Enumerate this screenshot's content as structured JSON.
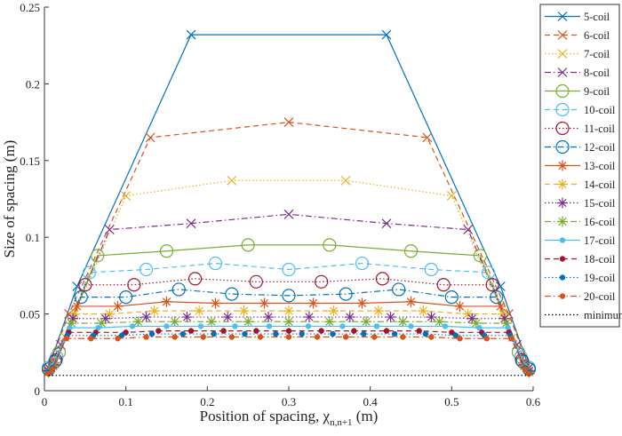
{
  "chart_data": {
    "type": "line",
    "xlabel": "Position of spacing, χ",
    "xlabel_sub": "n,n+1",
    "xlabel_unit": " (m)",
    "ylabel": "Size of spacing (m)",
    "xlim": [
      0,
      0.6
    ],
    "xticks": [
      0,
      0.1,
      0.2,
      0.3,
      0.4,
      0.5,
      0.6
    ],
    "ylim": [
      0,
      0.25
    ],
    "yticks": [
      0,
      0.05,
      0.1,
      0.15,
      0.2,
      0.25
    ],
    "legend": "outside-right",
    "series": [
      {
        "name": "5-coil",
        "color": "#0072BD",
        "dash": "solid",
        "marker": "x",
        "x": [
          0.005,
          0.04,
          0.18,
          0.42,
          0.56,
          0.595
        ],
        "values": [
          0.015,
          0.068,
          0.232,
          0.232,
          0.068,
          0.015
        ]
      },
      {
        "name": "6-coil",
        "color": "#D95319",
        "dash": "dashed",
        "marker": "x",
        "x": [
          0.005,
          0.03,
          0.13,
          0.3,
          0.47,
          0.57,
          0.595
        ],
        "values": [
          0.015,
          0.05,
          0.165,
          0.175,
          0.165,
          0.05,
          0.015
        ]
      },
      {
        "name": "7-coil",
        "color": "#EDB120",
        "dash": "dotted",
        "marker": "x",
        "x": [
          0.005,
          0.025,
          0.1,
          0.23,
          0.37,
          0.5,
          0.575,
          0.595
        ],
        "values": [
          0.015,
          0.035,
          0.127,
          0.137,
          0.137,
          0.127,
          0.035,
          0.015
        ]
      },
      {
        "name": "8-coil",
        "color": "#7E2F8E",
        "dash": "dashdot",
        "marker": "x",
        "x": [
          0.005,
          0.02,
          0.08,
          0.18,
          0.3,
          0.42,
          0.52,
          0.58,
          0.595
        ],
        "values": [
          0.015,
          0.03,
          0.105,
          0.109,
          0.115,
          0.109,
          0.105,
          0.03,
          0.015
        ]
      },
      {
        "name": "9-coil",
        "color": "#77AC30",
        "dash": "solid",
        "marker": "o",
        "x": [
          0.005,
          0.018,
          0.065,
          0.15,
          0.25,
          0.35,
          0.45,
          0.535,
          0.582,
          0.595
        ],
        "values": [
          0.015,
          0.025,
          0.088,
          0.091,
          0.095,
          0.095,
          0.091,
          0.088,
          0.025,
          0.015
        ]
      },
      {
        "name": "10-coil",
        "color": "#4DBEEE",
        "dash": "dashed",
        "marker": "o",
        "x": [
          0.005,
          0.015,
          0.055,
          0.125,
          0.21,
          0.3,
          0.39,
          0.475,
          0.545,
          0.585,
          0.595
        ],
        "values": [
          0.015,
          0.022,
          0.077,
          0.079,
          0.083,
          0.079,
          0.083,
          0.079,
          0.077,
          0.022,
          0.015
        ]
      },
      {
        "name": "11-coil",
        "color": "#A2142F",
        "dash": "dotted",
        "marker": "o",
        "x": [
          0.005,
          0.014,
          0.05,
          0.11,
          0.185,
          0.26,
          0.34,
          0.415,
          0.49,
          0.55,
          0.586,
          0.595
        ],
        "values": [
          0.014,
          0.02,
          0.069,
          0.069,
          0.073,
          0.071,
          0.071,
          0.073,
          0.069,
          0.069,
          0.02,
          0.014
        ]
      },
      {
        "name": "12-coil",
        "color": "#0072BD",
        "dash": "dashdot",
        "marker": "o",
        "x": [
          0.005,
          0.013,
          0.045,
          0.1,
          0.165,
          0.23,
          0.3,
          0.37,
          0.435,
          0.5,
          0.555,
          0.587,
          0.595
        ],
        "values": [
          0.014,
          0.019,
          0.061,
          0.061,
          0.066,
          0.063,
          0.062,
          0.063,
          0.066,
          0.061,
          0.061,
          0.019,
          0.014
        ]
      },
      {
        "name": "13-coil",
        "color": "#D95319",
        "dash": "solid",
        "marker": "*",
        "x": [
          0.005,
          0.012,
          0.04,
          0.09,
          0.15,
          0.21,
          0.27,
          0.33,
          0.39,
          0.45,
          0.51,
          0.56,
          0.588,
          0.595
        ],
        "values": [
          0.013,
          0.018,
          0.055,
          0.055,
          0.058,
          0.057,
          0.057,
          0.057,
          0.057,
          0.058,
          0.055,
          0.055,
          0.018,
          0.013
        ]
      },
      {
        "name": "14-coil",
        "color": "#EDB120",
        "dash": "dashed",
        "marker": "*",
        "x": [
          0.005,
          0.012,
          0.037,
          0.08,
          0.135,
          0.19,
          0.245,
          0.3,
          0.355,
          0.41,
          0.465,
          0.52,
          0.563,
          0.588,
          0.595
        ],
        "values": [
          0.013,
          0.017,
          0.05,
          0.05,
          0.052,
          0.052,
          0.052,
          0.052,
          0.052,
          0.052,
          0.052,
          0.05,
          0.05,
          0.017,
          0.013
        ]
      },
      {
        "name": "15-coil",
        "color": "#7E2F8E",
        "dash": "dotted",
        "marker": "*",
        "x": [
          0.005,
          0.011,
          0.035,
          0.075,
          0.125,
          0.175,
          0.225,
          0.275,
          0.325,
          0.375,
          0.425,
          0.475,
          0.525,
          0.565,
          0.589,
          0.595
        ],
        "values": [
          0.013,
          0.017,
          0.047,
          0.047,
          0.048,
          0.048,
          0.048,
          0.048,
          0.048,
          0.048,
          0.048,
          0.048,
          0.047,
          0.047,
          0.017,
          0.013
        ]
      },
      {
        "name": "16-coil",
        "color": "#77AC30",
        "dash": "dashdot",
        "marker": "*",
        "x": [
          0.005,
          0.011,
          0.033,
          0.07,
          0.115,
          0.16,
          0.205,
          0.25,
          0.3,
          0.35,
          0.395,
          0.44,
          0.485,
          0.53,
          0.567,
          0.589,
          0.595
        ],
        "values": [
          0.012,
          0.016,
          0.044,
          0.044,
          0.045,
          0.045,
          0.045,
          0.045,
          0.045,
          0.045,
          0.045,
          0.045,
          0.045,
          0.044,
          0.044,
          0.016,
          0.012
        ]
      },
      {
        "name": "17-coil",
        "color": "#4DBEEE",
        "dash": "solid",
        "marker": "dot",
        "x": [
          0.005,
          0.01,
          0.031,
          0.066,
          0.108,
          0.15,
          0.192,
          0.234,
          0.276,
          0.324,
          0.366,
          0.408,
          0.45,
          0.492,
          0.534,
          0.569,
          0.59,
          0.595
        ],
        "values": [
          0.012,
          0.016,
          0.041,
          0.041,
          0.042,
          0.042,
          0.042,
          0.042,
          0.042,
          0.042,
          0.042,
          0.042,
          0.042,
          0.042,
          0.041,
          0.041,
          0.016,
          0.012
        ]
      },
      {
        "name": "18-coil",
        "color": "#A2142F",
        "dash": "dashed",
        "marker": "dot",
        "x": [
          0.005,
          0.01,
          0.03,
          0.063,
          0.1,
          0.14,
          0.18,
          0.22,
          0.26,
          0.3,
          0.34,
          0.38,
          0.42,
          0.46,
          0.5,
          0.537,
          0.57,
          0.59,
          0.595
        ],
        "values": [
          0.012,
          0.015,
          0.038,
          0.038,
          0.038,
          0.039,
          0.039,
          0.039,
          0.039,
          0.039,
          0.039,
          0.039,
          0.039,
          0.039,
          0.038,
          0.038,
          0.038,
          0.015,
          0.012
        ]
      },
      {
        "name": "19-coil",
        "color": "#0072BD",
        "dash": "dotted",
        "marker": "dot",
        "x": [
          0.005,
          0.01,
          0.028,
          0.06,
          0.095,
          0.132,
          0.17,
          0.208,
          0.246,
          0.284,
          0.316,
          0.354,
          0.392,
          0.43,
          0.468,
          0.505,
          0.54,
          0.572,
          0.59,
          0.595
        ],
        "values": [
          0.012,
          0.015,
          0.036,
          0.036,
          0.036,
          0.037,
          0.037,
          0.037,
          0.037,
          0.037,
          0.037,
          0.037,
          0.037,
          0.037,
          0.037,
          0.036,
          0.036,
          0.036,
          0.015,
          0.012
        ]
      },
      {
        "name": "20-coil",
        "color": "#D95319",
        "dash": "dashdot",
        "marker": "dot",
        "x": [
          0.005,
          0.01,
          0.027,
          0.057,
          0.09,
          0.125,
          0.16,
          0.195,
          0.23,
          0.265,
          0.3,
          0.335,
          0.37,
          0.405,
          0.44,
          0.475,
          0.51,
          0.543,
          0.573,
          0.59,
          0.595
        ],
        "values": [
          0.011,
          0.014,
          0.034,
          0.034,
          0.034,
          0.035,
          0.035,
          0.035,
          0.035,
          0.035,
          0.035,
          0.035,
          0.035,
          0.035,
          0.035,
          0.035,
          0.034,
          0.034,
          0.034,
          0.014,
          0.011
        ]
      },
      {
        "name": "minimum",
        "color": "#000000",
        "dash": "dotted",
        "marker": "none",
        "x": [
          0.005,
          0.595
        ],
        "values": [
          0.01,
          0.01
        ]
      }
    ]
  }
}
